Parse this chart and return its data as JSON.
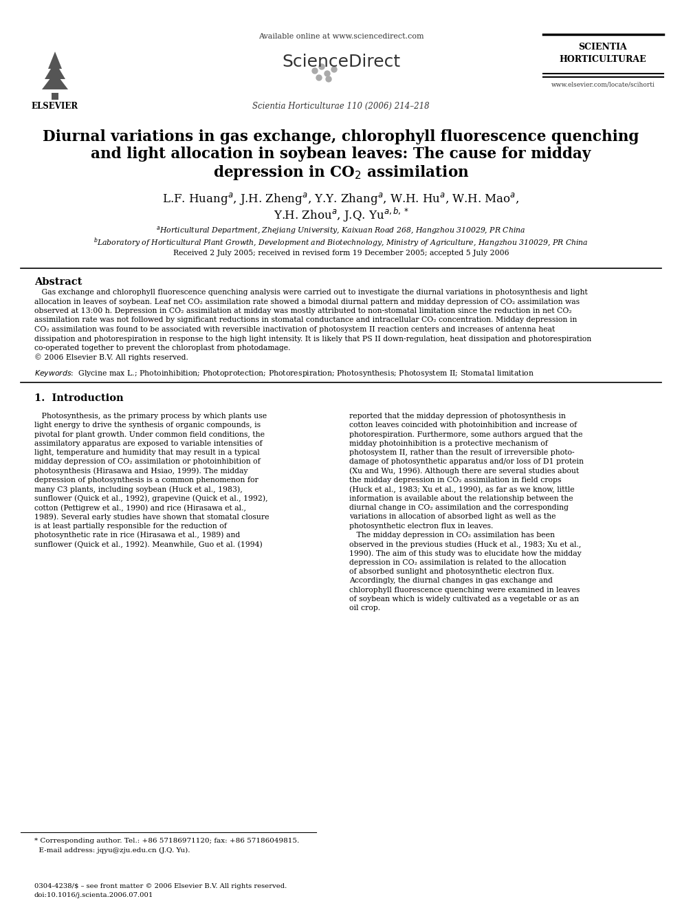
{
  "bg_color": "#ffffff",
  "page_width": 9.92,
  "page_height": 13.23,
  "header_available": "Available online at www.sciencedirect.com",
  "header_sciencedirect": "ScienceDirect",
  "header_journal_abbrev": "Scientia Horticulturae 110 (2006) 214–218",
  "header_journal_line1": "SCIENTIA",
  "header_journal_line2": "HORTICULTURAE",
  "header_journal_url": "www.elsevier.com/locate/scihorti",
  "header_elsevier": "ELSEVIER",
  "title_line1": "Diurnal variations in gas exchange, chlorophyll fluorescence quenching",
  "title_line2": "and light allocation in soybean leaves: The cause for midday",
  "title_line3": "depression in CO$_2$ assimilation",
  "author_line1": "L.F. Huang$^a$, J.H. Zheng$^a$, Y.Y. Zhang$^a$, W.H. Hu$^a$, W.H. Mao$^a$,",
  "author_line2": "Y.H. Zhou$^a$, J.Q. Yu$^{a,b,*}$",
  "affil_a": "$^a$Horticultural Department, Zhejiang University, Kaixuan Road 268, Hangzhou 310029, PR China",
  "affil_b": "$^b$Laboratory of Horticultural Plant Growth, Development and Biotechnology, Ministry of Agriculture, Hangzhou 310029, PR China",
  "received": "Received 2 July 2005; received in revised form 19 December 2005; accepted 5 July 2006",
  "abstract_title": "Abstract",
  "abs_lines": [
    "   Gas exchange and chlorophyll fluorescence quenching analysis were carried out to investigate the diurnal variations in photosynthesis and light",
    "allocation in leaves of soybean. Leaf net CO₂ assimilation rate showed a bimodal diurnal pattern and midday depression of CO₂ assimilation was",
    "observed at 13:00 h. Depression in CO₂ assimilation at midday was mostly attributed to non-stomatal limitation since the reduction in net CO₂",
    "assimilation rate was not followed by significant reductions in stomatal conductance and intracellular CO₂ concentration. Midday depression in",
    "CO₂ assimilation was found to be associated with reversible inactivation of photosystem II reaction centers and increases of antenna heat",
    "dissipation and photorespiration in response to the high light intensity. It is likely that PS II down-regulation, heat dissipation and photorespiration",
    "co-operated together to prevent the chloroplast from photodamage.",
    "© 2006 Elsevier B.V. All rights reserved."
  ],
  "keywords_line": "Keywords:  Glycine max L.; Photoinhibition; Photoprotection; Photorespiration; Photosynthesis; Photosystem II; Stomatal limitation",
  "section1_title": "1.  Introduction",
  "col1_lines": [
    "   Photosynthesis, as the primary process by which plants use",
    "light energy to drive the synthesis of organic compounds, is",
    "pivotal for plant growth. Under common field conditions, the",
    "assimilatory apparatus are exposed to variable intensities of",
    "light, temperature and humidity that may result in a typical",
    "midday depression of CO₂ assimilation or photoinhibition of",
    "photosynthesis (Hirasawa and Hsiao, 1999). The midday",
    "depression of photosynthesis is a common phenomenon for",
    "many C3 plants, including soybean (Huck et al., 1983),",
    "sunflower (Quick et al., 1992), grapevine (Quick et al., 1992),",
    "cotton (Pettigrew et al., 1990) and rice (Hirasawa et al.,",
    "1989). Several early studies have shown that stomatal closure",
    "is at least partially responsible for the reduction of",
    "photosynthetic rate in rice (Hirasawa et al., 1989) and",
    "sunflower (Quick et al., 1992). Meanwhile, Guo et al. (1994)"
  ],
  "col2_lines": [
    "reported that the midday depression of photosynthesis in",
    "cotton leaves coincided with photoinhibition and increase of",
    "photorespiration. Furthermore, some authors argued that the",
    "midday photoinhibition is a protective mechanism of",
    "photosystem II, rather than the result of irreversible photo-",
    "damage of photosynthetic apparatus and/or loss of D1 protein",
    "(Xu and Wu, 1996). Although there are several studies about",
    "the midday depression in CO₂ assimilation in field crops",
    "(Huck et al., 1983; Xu et al., 1990), as far as we know, little",
    "information is available about the relationship between the",
    "diurnal change in CO₂ assimilation and the corresponding",
    "variations in allocation of absorbed light as well as the",
    "photosynthetic electron flux in leaves.",
    "   The midday depression in CO₂ assimilation has been",
    "observed in the previous studies (Huck et al., 1983; Xu et al.,",
    "1990). The aim of this study was to elucidate how the midday",
    "depression in CO₂ assimilation is related to the allocation",
    "of absorbed sunlight and photosynthetic electron flux.",
    "Accordingly, the diurnal changes in gas exchange and",
    "chlorophyll fluorescence quenching were examined in leaves",
    "of soybean which is widely cultivated as a vegetable or as an",
    "oil crop."
  ],
  "footnote_line1": "* Corresponding author. Tel.: +86 57186971120; fax: +86 57186049815.",
  "footnote_line2": "  E-mail address: jqyu@zju.edu.cn (J.Q. Yu).",
  "footer_line1": "0304-4238/$ – see front matter © 2006 Elsevier B.V. All rights reserved.",
  "footer_line2": "doi:10.1016/j.scienta.2006.07.001"
}
